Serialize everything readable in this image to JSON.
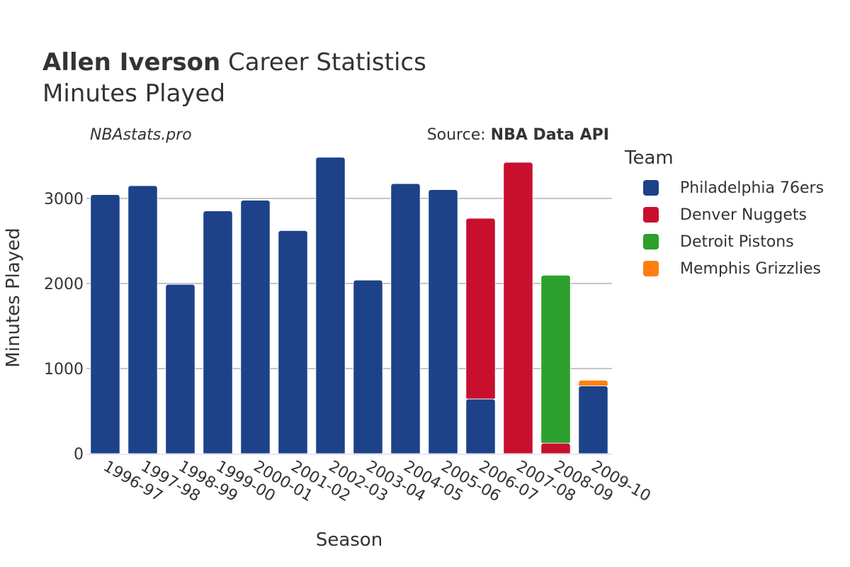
{
  "header": {
    "title_bold": "Allen Iverson",
    "title_rest": " Career Statistics",
    "subtitle": "Minutes Played"
  },
  "credits": {
    "site": "NBAstats.pro",
    "source_label": "Source: ",
    "source_name": "NBA Data API"
  },
  "legend": {
    "title": "Team",
    "items": [
      {
        "label": "Philadelphia 76ers",
        "color": "#1d428a"
      },
      {
        "label": "Denver Nuggets",
        "color": "#c8102e"
      },
      {
        "label": "Detroit Pistons",
        "color": "#2ca02c"
      },
      {
        "label": "Memphis Grizzlies",
        "color": "#ff7f0e"
      }
    ]
  },
  "chart_data": {
    "type": "bar",
    "stacked": true,
    "xlabel": "Season",
    "ylabel": "Minutes Played",
    "ylim": [
      0,
      3550
    ],
    "yticks": [
      0,
      1000,
      2000,
      3000
    ],
    "grid": true,
    "legend_position": "right",
    "categories": [
      "1996-97",
      "1997-98",
      "1998-99",
      "1999-00",
      "2000-01",
      "2001-02",
      "2002-03",
      "2003-04",
      "2004-05",
      "2005-06",
      "2006-07",
      "2007-08",
      "2008-09",
      "2009-10"
    ],
    "series": [
      {
        "name": "Philadelphia 76ers",
        "color": "#1d428a",
        "values": [
          3045,
          3150,
          1990,
          2853,
          2979,
          2622,
          3485,
          2040,
          3174,
          3103,
          642,
          0,
          0,
          796
        ]
      },
      {
        "name": "Denver Nuggets",
        "color": "#c8102e",
        "values": [
          0,
          0,
          0,
          0,
          0,
          0,
          0,
          0,
          0,
          0,
          2125,
          3425,
          123,
          0
        ]
      },
      {
        "name": "Detroit Pistons",
        "color": "#2ca02c",
        "values": [
          0,
          0,
          0,
          0,
          0,
          0,
          0,
          0,
          0,
          0,
          0,
          0,
          1974,
          0
        ]
      },
      {
        "name": "Memphis Grizzlies",
        "color": "#ff7f0e",
        "values": [
          0,
          0,
          0,
          0,
          0,
          0,
          0,
          0,
          0,
          0,
          0,
          0,
          0,
          67
        ]
      }
    ]
  }
}
